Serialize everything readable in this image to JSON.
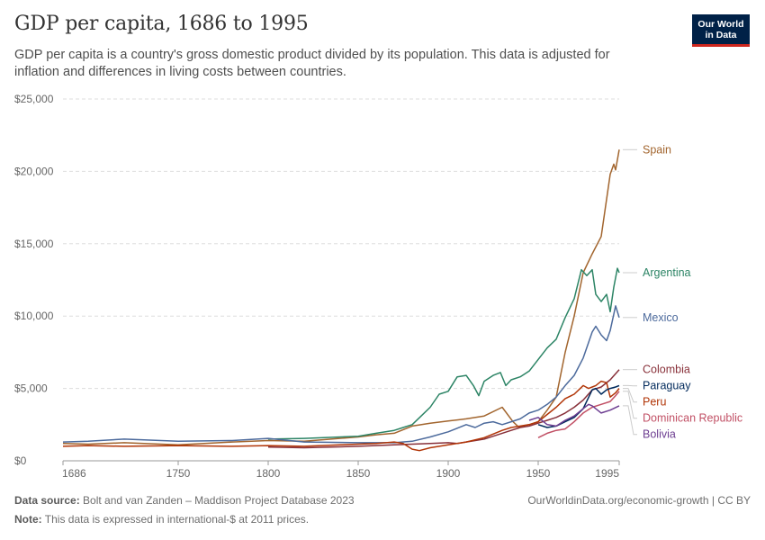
{
  "header": {
    "title": "GDP per capita, 1686 to 1995",
    "subtitle": "GDP per capita is a country's gross domestic product divided by its population. This data is adjusted for inflation and differences in living costs between countries.",
    "logo_line1": "Our World",
    "logo_line2": "in Data"
  },
  "footer": {
    "source_label": "Data source:",
    "source_text": "Bolt and van Zanden – Maddison Project Database 2023",
    "note_label": "Note:",
    "note_text": "This data is expressed in international-$ at 2011 prices.",
    "right_text": "OurWorldinData.org/economic-growth | CC BY"
  },
  "chart_data": {
    "type": "line",
    "title": "GDP per capita, 1686 to 1995",
    "xlabel": "",
    "ylabel": "",
    "xlim": [
      1686,
      1995
    ],
    "ylim": [
      0,
      25000
    ],
    "x_ticks": [
      1686,
      1750,
      1800,
      1850,
      1900,
      1950,
      1995
    ],
    "y_ticks": [
      0,
      5000,
      10000,
      15000,
      20000,
      25000
    ],
    "y_tick_labels": [
      "$0",
      "$5,000",
      "$10,000",
      "$15,000",
      "$20,000",
      "$25,000"
    ],
    "grid": true,
    "series": [
      {
        "name": "Spain",
        "color": "#a2652e",
        "x": [
          1686,
          1700,
          1720,
          1750,
          1780,
          1800,
          1820,
          1850,
          1860,
          1870,
          1880,
          1890,
          1900,
          1910,
          1920,
          1930,
          1936,
          1939,
          1945,
          1950,
          1955,
          1960,
          1965,
          1970,
          1975,
          1980,
          1985,
          1990,
          1992,
          1993,
          1995
        ],
        "y": [
          1200,
          1150,
          1250,
          1100,
          1300,
          1400,
          1350,
          1650,
          1800,
          1900,
          2400,
          2600,
          2750,
          2900,
          3100,
          3700,
          2700,
          2350,
          2500,
          2700,
          3500,
          4400,
          7500,
          10000,
          13000,
          14300,
          15500,
          19800,
          20500,
          20100,
          21500
        ]
      },
      {
        "name": "Argentina",
        "color": "#2c8465",
        "x": [
          1800,
          1820,
          1850,
          1860,
          1870,
          1875,
          1880,
          1885,
          1890,
          1895,
          1900,
          1905,
          1910,
          1914,
          1917,
          1920,
          1925,
          1929,
          1932,
          1935,
          1940,
          1945,
          1950,
          1955,
          1960,
          1965,
          1970,
          1974,
          1977,
          1980,
          1982,
          1985,
          1988,
          1990,
          1992,
          1994,
          1995
        ],
        "y": [
          1500,
          1550,
          1700,
          1900,
          2100,
          2300,
          2500,
          3100,
          3700,
          4600,
          4800,
          5800,
          5900,
          5200,
          4500,
          5500,
          5900,
          6100,
          5200,
          5600,
          5800,
          6200,
          7000,
          7800,
          8400,
          9900,
          11200,
          13200,
          12800,
          13200,
          11500,
          11000,
          11500,
          10300,
          12000,
          13300,
          13000
        ]
      },
      {
        "name": "Mexico",
        "color": "#4c6a9c",
        "x": [
          1686,
          1700,
          1720,
          1750,
          1780,
          1800,
          1820,
          1850,
          1870,
          1880,
          1890,
          1900,
          1910,
          1915,
          1920,
          1925,
          1930,
          1935,
          1940,
          1945,
          1950,
          1955,
          1960,
          1965,
          1970,
          1975,
          1980,
          1982,
          1985,
          1988,
          1990,
          1993,
          1995
        ],
        "y": [
          1300,
          1350,
          1500,
          1350,
          1400,
          1550,
          1300,
          1250,
          1250,
          1350,
          1650,
          2000,
          2500,
          2300,
          2600,
          2700,
          2500,
          2700,
          2900,
          3300,
          3500,
          3900,
          4400,
          5200,
          5900,
          7100,
          8900,
          9300,
          8700,
          8300,
          9000,
          10700,
          9900
        ]
      },
      {
        "name": "Colombia",
        "color": "#883039",
        "x": [
          1800,
          1820,
          1850,
          1870,
          1880,
          1890,
          1900,
          1905,
          1910,
          1920,
          1925,
          1930,
          1935,
          1940,
          1945,
          1950,
          1955,
          1960,
          1965,
          1970,
          1975,
          1980,
          1985,
          1990,
          1995
        ],
        "y": [
          950,
          900,
          1000,
          1100,
          1150,
          1200,
          1250,
          1200,
          1300,
          1500,
          1700,
          1900,
          2100,
          2300,
          2400,
          2600,
          2800,
          3000,
          3300,
          3700,
          4200,
          4900,
          5100,
          5600,
          6300
        ]
      },
      {
        "name": "Peru",
        "color": "#b13507",
        "x": [
          1686,
          1700,
          1720,
          1750,
          1780,
          1800,
          1820,
          1840,
          1850,
          1860,
          1870,
          1875,
          1880,
          1884,
          1890,
          1900,
          1910,
          1920,
          1930,
          1935,
          1940,
          1945,
          1950,
          1955,
          1960,
          1965,
          1970,
          1975,
          1978,
          1980,
          1982,
          1985,
          1988,
          1990,
          1993,
          1995
        ],
        "y": [
          1000,
          1050,
          1000,
          1050,
          1000,
          1050,
          1000,
          1100,
          1150,
          1200,
          1300,
          1200,
          800,
          700,
          900,
          1100,
          1300,
          1600,
          2100,
          2300,
          2400,
          2500,
          2700,
          3200,
          3700,
          4300,
          4600,
          5200,
          5000,
          5100,
          5200,
          5500,
          5400,
          4400,
          4700,
          5000
        ]
      },
      {
        "name": "Paraguay",
        "color": "#00295b",
        "x": [
          1950,
          1955,
          1960,
          1965,
          1970,
          1975,
          1980,
          1982,
          1985,
          1988,
          1990,
          1993,
          1995
        ],
        "y": [
          2500,
          2300,
          2400,
          2700,
          3000,
          3600,
          4900,
          5000,
          4600,
          4900,
          5000,
          5100,
          5200
        ]
      },
      {
        "name": "Dominican Republic",
        "color": "#c15065",
        "x": [
          1950,
          1955,
          1960,
          1965,
          1970,
          1975,
          1980,
          1985,
          1990,
          1993,
          1995
        ],
        "y": [
          1600,
          1900,
          2100,
          2200,
          2700,
          3300,
          3700,
          3900,
          4100,
          4500,
          4800
        ]
      },
      {
        "name": "Bolivia",
        "color": "#6d3e91",
        "x": [
          1945,
          1950,
          1955,
          1960,
          1965,
          1970,
          1975,
          1978,
          1980,
          1985,
          1990,
          1995
        ],
        "y": [
          2800,
          3000,
          2500,
          2400,
          2800,
          3100,
          3600,
          3900,
          3800,
          3300,
          3500,
          3800
        ]
      }
    ]
  }
}
